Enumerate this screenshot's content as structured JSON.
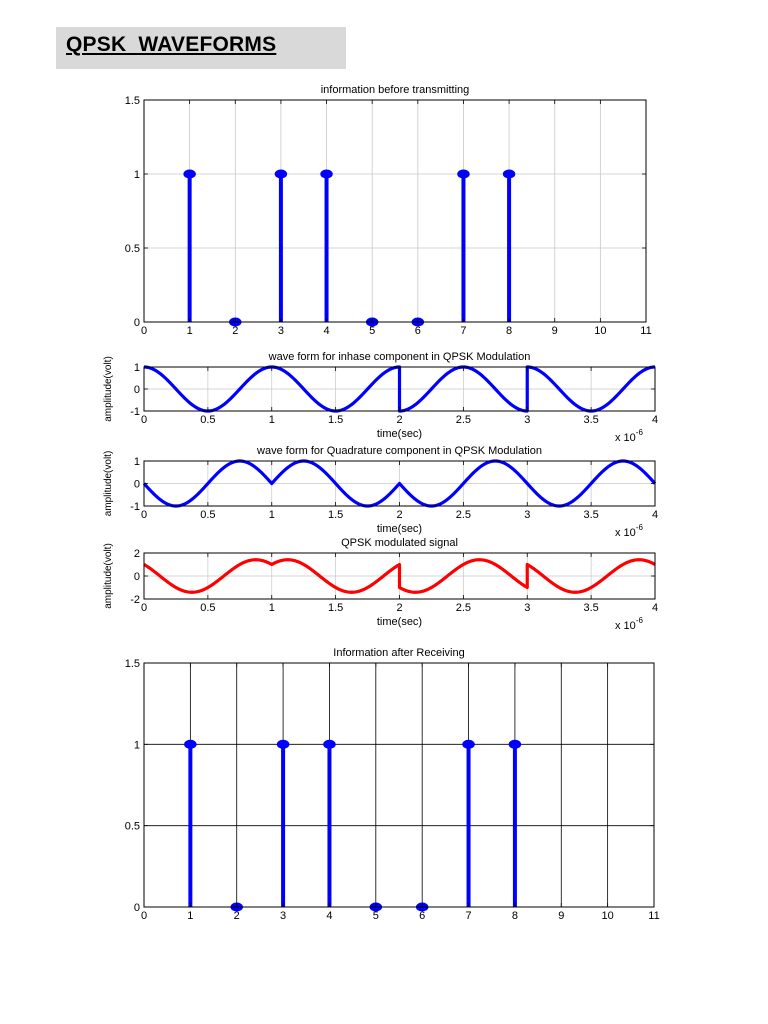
{
  "page": {
    "heading": "QPSK  WAVEFORMS"
  },
  "chart_data": [
    {
      "type": "stem",
      "title": "information before transmitting",
      "x": [
        1,
        2,
        3,
        4,
        5,
        6,
        7,
        8
      ],
      "values": [
        1,
        0,
        1,
        1,
        0,
        0,
        1,
        1
      ],
      "xlim": [
        0,
        11
      ],
      "ylim": [
        0,
        1.5
      ],
      "xticks": [
        0,
        1,
        2,
        3,
        4,
        5,
        6,
        7,
        8,
        9,
        10,
        11
      ],
      "yticks": [
        0,
        0.5,
        1,
        1.5
      ],
      "xticklabels": [
        "0",
        "1",
        "2",
        "3",
        "4",
        "5",
        "6",
        "7",
        "8",
        "9",
        "10",
        "11"
      ],
      "yticklabels": [
        "0",
        "0.5",
        "1",
        "1.5"
      ],
      "grid": true,
      "color": "#0000ff"
    },
    {
      "type": "line",
      "title": "wave form for inhase component in QPSK Modulation",
      "xlabel": "time(sec)",
      "ylabel": "amplitude(volt)",
      "xexponent": "x 10-6",
      "xlim": [
        0,
        4
      ],
      "ylim": [
        -1,
        1
      ],
      "xticks": [
        0,
        0.5,
        1,
        1.5,
        2,
        2.5,
        3,
        3.5,
        4
      ],
      "xticklabels": [
        "0",
        "0.5",
        "1",
        "1.5",
        "2",
        "2.5",
        "3",
        "3.5",
        "4"
      ],
      "yticks": [
        -1,
        0,
        1
      ],
      "yticklabels": [
        "-1",
        "0",
        "1"
      ],
      "symbols_x1e6": [
        0,
        1,
        2,
        3
      ],
      "symbol_polarity": [
        1,
        1,
        -1,
        1
      ],
      "waveform": "polarity * cos(2*pi*x)",
      "grid": true,
      "color": "#0000ff"
    },
    {
      "type": "line",
      "title": "wave form for Quadrature component in QPSK Modulation",
      "xlabel": "time(sec)",
      "ylabel": "amplitude(volt)",
      "xexponent": "x 10-6",
      "xlim": [
        0,
        4
      ],
      "ylim": [
        -1,
        1
      ],
      "xticks": [
        0,
        0.5,
        1,
        1.5,
        2,
        2.5,
        3,
        3.5,
        4
      ],
      "xticklabels": [
        "0",
        "0.5",
        "1",
        "1.5",
        "2",
        "2.5",
        "3",
        "3.5",
        "4"
      ],
      "yticks": [
        -1,
        0,
        1
      ],
      "yticklabels": [
        "-1",
        "0",
        "1"
      ],
      "symbols_x1e6": [
        0,
        1,
        2,
        3
      ],
      "symbol_polarity": [
        -1,
        1,
        -1,
        -1
      ],
      "waveform": "polarity * sin(2*pi*x)",
      "grid": true,
      "color": "#0000ff"
    },
    {
      "type": "line",
      "title": "QPSK modulated signal",
      "xlabel": "time(sec)",
      "ylabel": "amplitude(volt)",
      "xexponent": "x 10-6",
      "xlim": [
        0,
        4
      ],
      "ylim": [
        -2,
        2
      ],
      "xticks": [
        0,
        0.5,
        1,
        1.5,
        2,
        2.5,
        3,
        3.5,
        4
      ],
      "xticklabels": [
        "0",
        "0.5",
        "1",
        "1.5",
        "2",
        "2.5",
        "3",
        "3.5",
        "4"
      ],
      "yticks": [
        -2,
        0,
        2
      ],
      "yticklabels": [
        "-2",
        "0",
        "2"
      ],
      "waveform": "inphase + quadrature",
      "grid": true,
      "color": "#ff0000"
    },
    {
      "type": "stem",
      "title": "Information after Receiving",
      "x": [
        1,
        2,
        3,
        4,
        5,
        6,
        7,
        8
      ],
      "values": [
        1,
        0,
        1,
        1,
        0,
        0,
        1,
        1
      ],
      "xlim": [
        0,
        11
      ],
      "ylim": [
        0,
        1.5
      ],
      "xticks": [
        0,
        1,
        2,
        3,
        4,
        5,
        6,
        7,
        8,
        9,
        10,
        11
      ],
      "yticks": [
        0,
        0.5,
        1,
        1.5
      ],
      "xticklabels": [
        "0",
        "1",
        "2",
        "3",
        "4",
        "5",
        "6",
        "7",
        "8",
        "9",
        "10",
        "11"
      ],
      "yticklabels": [
        "0",
        "0.5",
        "1",
        "1.5"
      ],
      "grid": true,
      "color": "#0000ff"
    }
  ]
}
